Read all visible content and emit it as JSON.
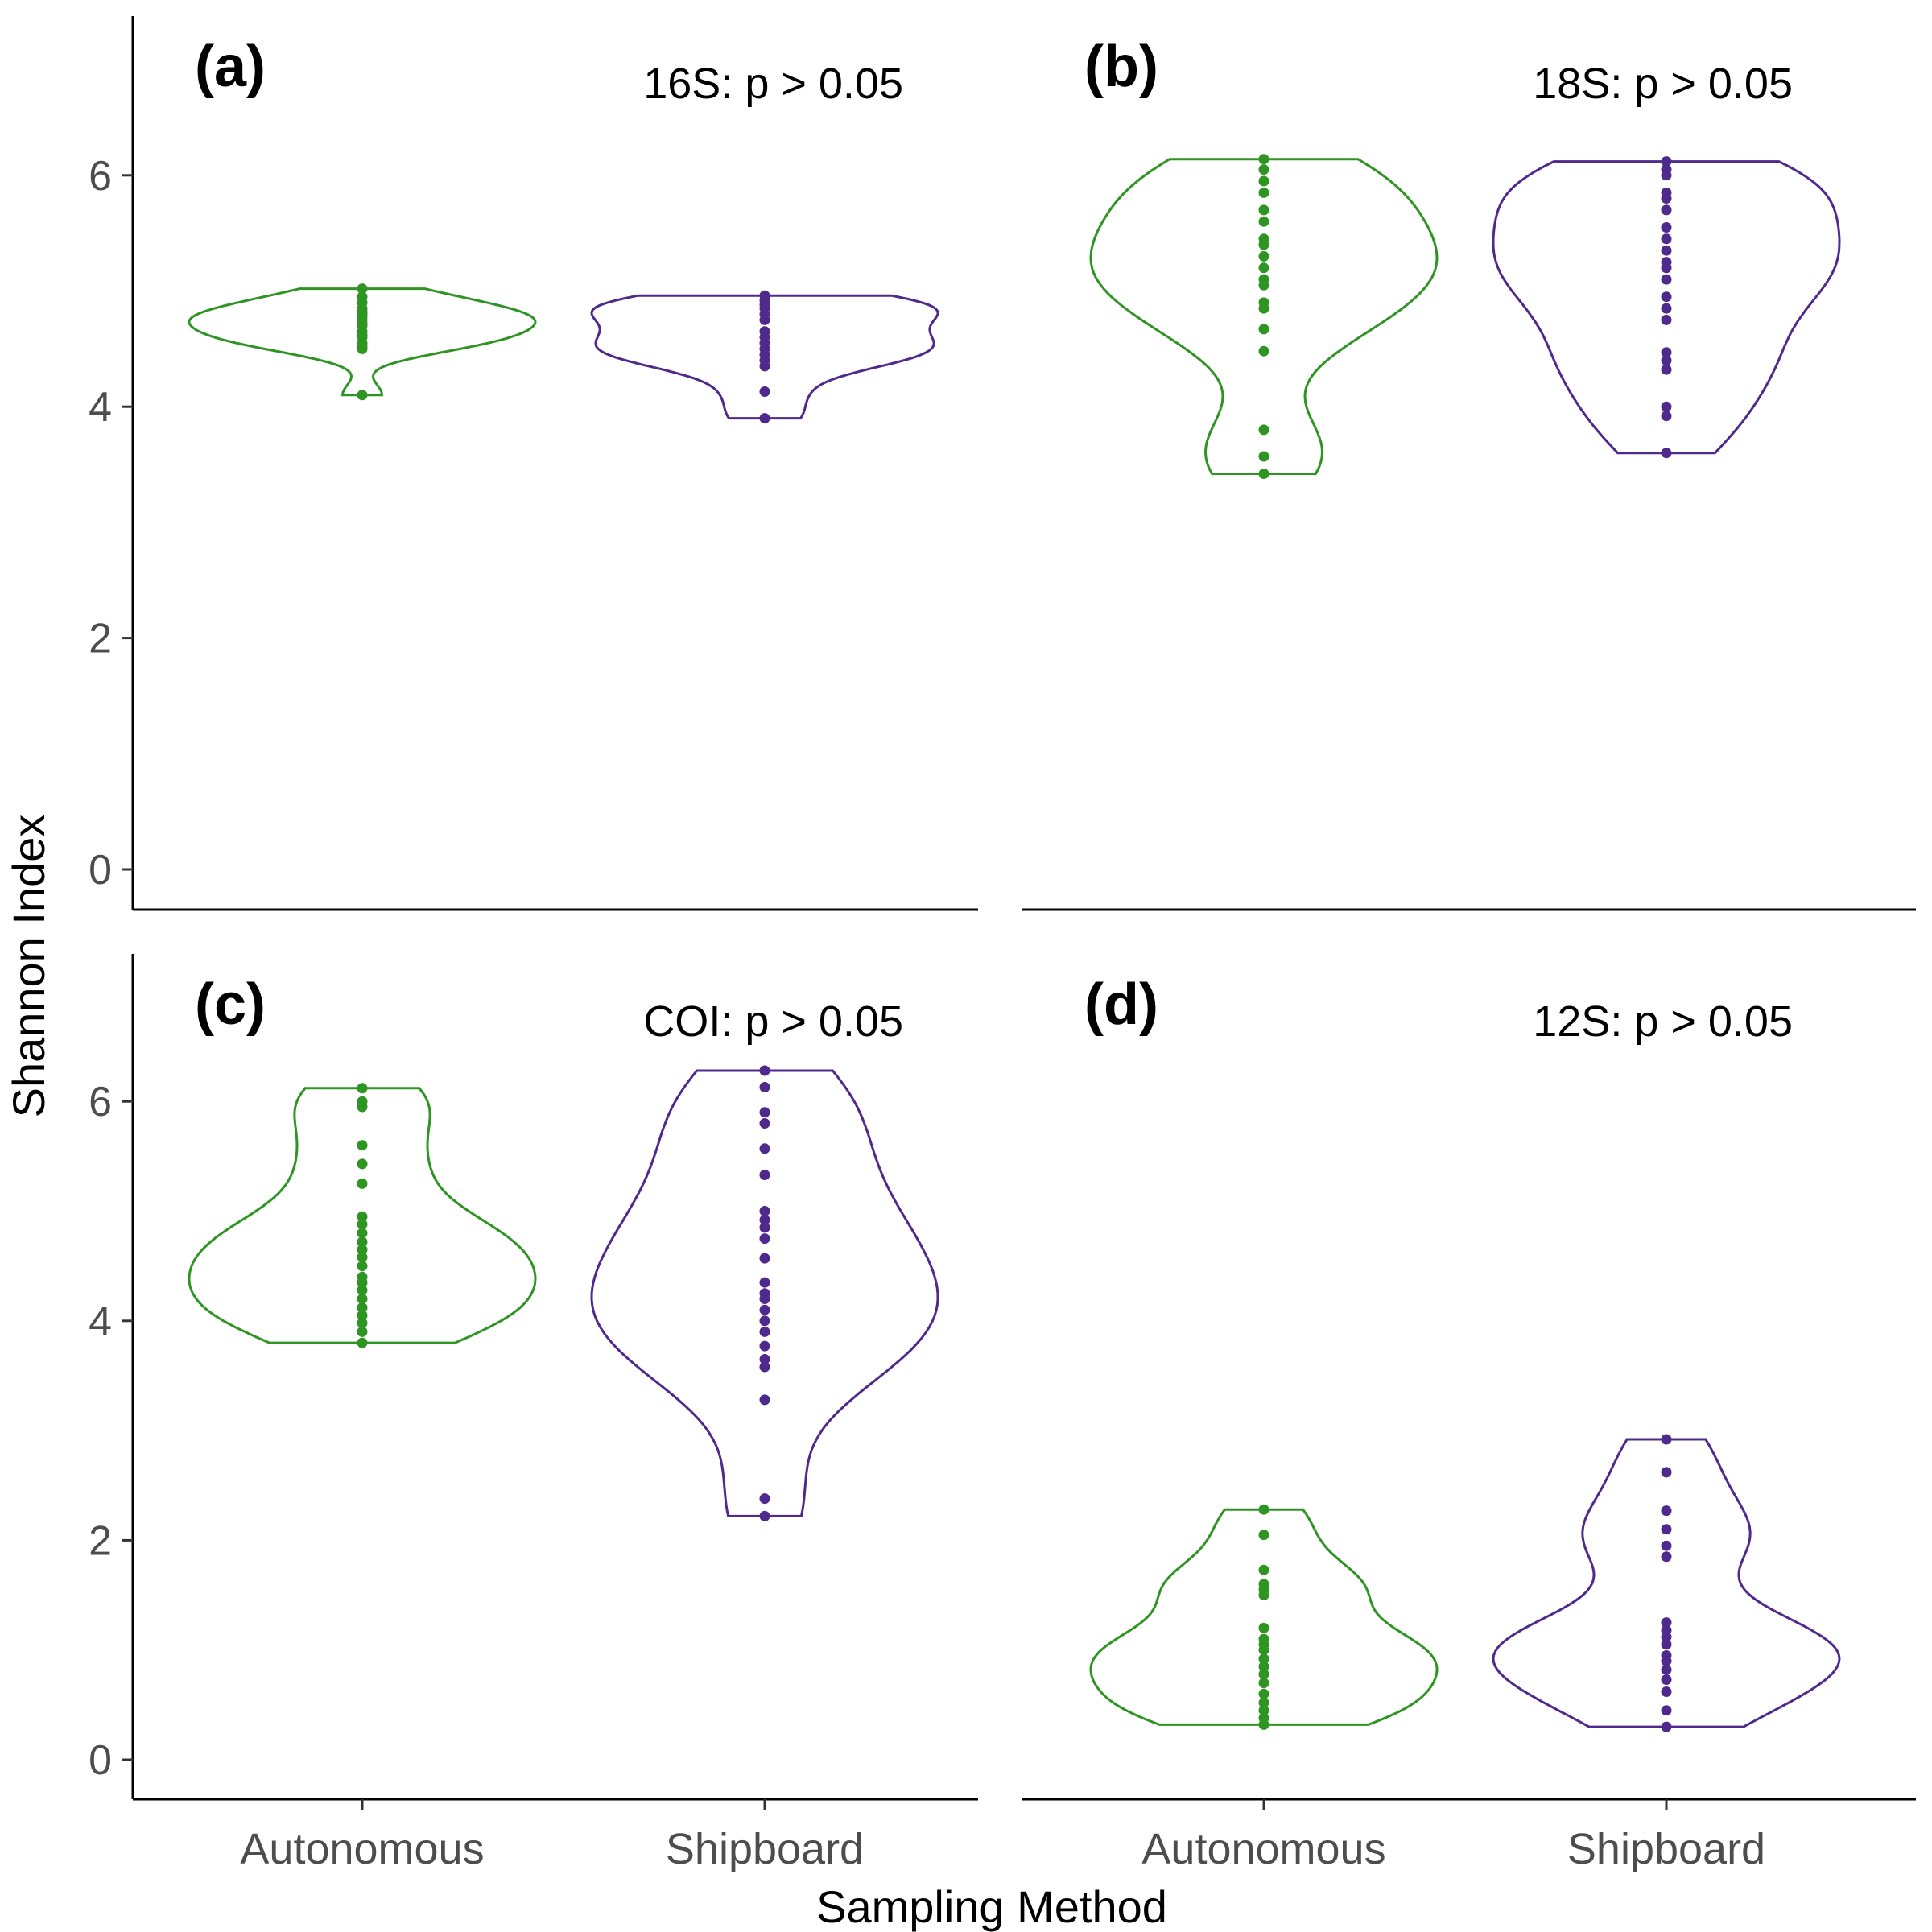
{
  "figure": {
    "xlabel": "Sampling Method",
    "ylabel": "Shannon Index",
    "categories": [
      "Autonomous",
      "Shipboard"
    ],
    "colors": {
      "Autonomous": "#2e9422",
      "Shipboard": "#4f2a8c"
    }
  },
  "chart_data": [
    {
      "type": "violin",
      "panel": "(a)",
      "annotation": "16S: p > 0.05",
      "ylim": [
        0,
        7.3
      ],
      "yticks": [
        0,
        2,
        4,
        6
      ],
      "categories": [
        "Autonomous",
        "Shipboard"
      ],
      "series": [
        {
          "category": "Autonomous",
          "min": 4.1,
          "max": 5.02,
          "points": [
            4.1,
            4.5,
            4.52,
            4.55,
            4.6,
            4.62,
            4.65,
            4.7,
            4.72,
            4.75,
            4.78,
            4.8,
            4.82,
            4.85,
            4.9,
            4.95,
            5.02
          ]
        },
        {
          "category": "Shipboard",
          "min": 3.9,
          "max": 4.96,
          "points": [
            3.9,
            4.13,
            4.35,
            4.4,
            4.45,
            4.5,
            4.55,
            4.6,
            4.65,
            4.75,
            4.8,
            4.85,
            4.88,
            4.92,
            4.96
          ]
        }
      ]
    },
    {
      "type": "violin",
      "panel": "(b)",
      "annotation": "18S: p > 0.05",
      "ylim": [
        0,
        7.3
      ],
      "yticks": [
        0,
        2,
        4,
        6
      ],
      "categories": [
        "Autonomous",
        "Shipboard"
      ],
      "series": [
        {
          "category": "Autonomous",
          "min": 3.42,
          "max": 6.14,
          "points": [
            3.42,
            3.57,
            3.8,
            4.48,
            4.67,
            4.85,
            4.9,
            5.05,
            5.1,
            5.2,
            5.3,
            5.4,
            5.45,
            5.6,
            5.7,
            5.85,
            5.95,
            6.05,
            6.14
          ]
        },
        {
          "category": "Shipboard",
          "min": 3.6,
          "max": 6.12,
          "points": [
            3.6,
            3.92,
            4.0,
            4.32,
            4.4,
            4.47,
            4.75,
            4.85,
            4.95,
            5.1,
            5.2,
            5.25,
            5.35,
            5.45,
            5.55,
            5.7,
            5.8,
            5.85,
            6.0,
            6.05,
            6.12
          ]
        }
      ]
    },
    {
      "type": "violin",
      "panel": "(c)",
      "annotation": "COI: p > 0.05",
      "ylim": [
        0,
        7.3
      ],
      "yticks": [
        0,
        2,
        4,
        6
      ],
      "categories": [
        "Autonomous",
        "Shipboard"
      ],
      "series": [
        {
          "category": "Autonomous",
          "min": 3.8,
          "max": 6.12,
          "points": [
            3.8,
            3.9,
            3.98,
            4.05,
            4.12,
            4.2,
            4.28,
            4.35,
            4.4,
            4.5,
            4.58,
            4.65,
            4.72,
            4.8,
            4.88,
            4.95,
            5.25,
            5.43,
            5.6,
            5.95,
            6.0,
            6.12
          ]
        },
        {
          "category": "Shipboard",
          "min": 2.22,
          "max": 6.28,
          "points": [
            2.22,
            2.38,
            3.28,
            3.58,
            3.65,
            3.77,
            3.9,
            4.0,
            4.1,
            4.2,
            4.25,
            4.35,
            4.57,
            4.75,
            4.85,
            4.92,
            5.0,
            5.33,
            5.57,
            5.8,
            5.9,
            6.13,
            6.28
          ]
        }
      ]
    },
    {
      "type": "violin",
      "panel": "(d)",
      "annotation": "12S: p > 0.05",
      "ylim": [
        0,
        7.3
      ],
      "yticks": [
        0,
        2,
        4,
        6
      ],
      "categories": [
        "Autonomous",
        "Shipboard"
      ],
      "series": [
        {
          "category": "Autonomous",
          "min": 0.32,
          "max": 2.28,
          "points": [
            0.32,
            0.38,
            0.45,
            0.52,
            0.6,
            0.7,
            0.78,
            0.85,
            0.92,
            1.0,
            1.05,
            1.1,
            1.2,
            1.5,
            1.55,
            1.6,
            1.73,
            2.05,
            2.28
          ]
        },
        {
          "category": "Shipboard",
          "min": 0.3,
          "max": 2.92,
          "points": [
            0.3,
            0.45,
            0.62,
            0.73,
            0.82,
            0.9,
            0.95,
            1.05,
            1.12,
            1.18,
            1.25,
            1.85,
            1.95,
            2.1,
            2.27,
            2.62,
            2.92
          ]
        }
      ]
    }
  ]
}
